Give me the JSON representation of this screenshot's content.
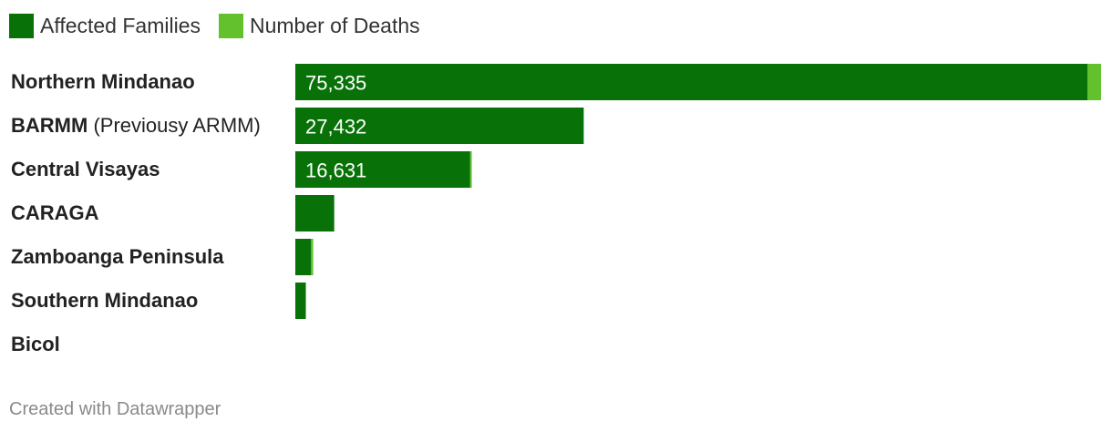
{
  "colors": {
    "affected": "#087208",
    "deaths": "#62c12c",
    "label_text": "#222222",
    "value_text": "#ffffff"
  },
  "legend": {
    "items": [
      {
        "label": "Affected Families",
        "color": "#087208"
      },
      {
        "label": "Number of Deaths",
        "color": "#62c12c"
      }
    ]
  },
  "footer": {
    "credit": "Created with Datawrapper"
  },
  "chart_data": {
    "type": "bar",
    "orientation": "horizontal",
    "stacked": true,
    "categories": [
      {
        "bold": "Northern Mindanao",
        "rest": ""
      },
      {
        "bold": "BARMM",
        "rest": " (Previousy ARMM)"
      },
      {
        "bold": "Central Visayas",
        "rest": ""
      },
      {
        "bold": "CARAGA",
        "rest": ""
      },
      {
        "bold": "Zamboanga Peninsula",
        "rest": ""
      },
      {
        "bold": "Southern Mindanao",
        "rest": ""
      },
      {
        "bold": "Bicol",
        "rest": ""
      }
    ],
    "series": [
      {
        "name": "Affected Families",
        "values": [
          75335,
          27432,
          16631,
          3700,
          1500,
          1000,
          0
        ],
        "labels": [
          "75,335",
          "27,432",
          "16,631",
          "",
          "",
          "",
          ""
        ]
      },
      {
        "name": "Number of Deaths",
        "values": [
          1300,
          0,
          150,
          0,
          200,
          0,
          0
        ]
      }
    ],
    "xlim": [
      0,
      76635
    ],
    "grid": false,
    "legend_position": "top-left"
  }
}
